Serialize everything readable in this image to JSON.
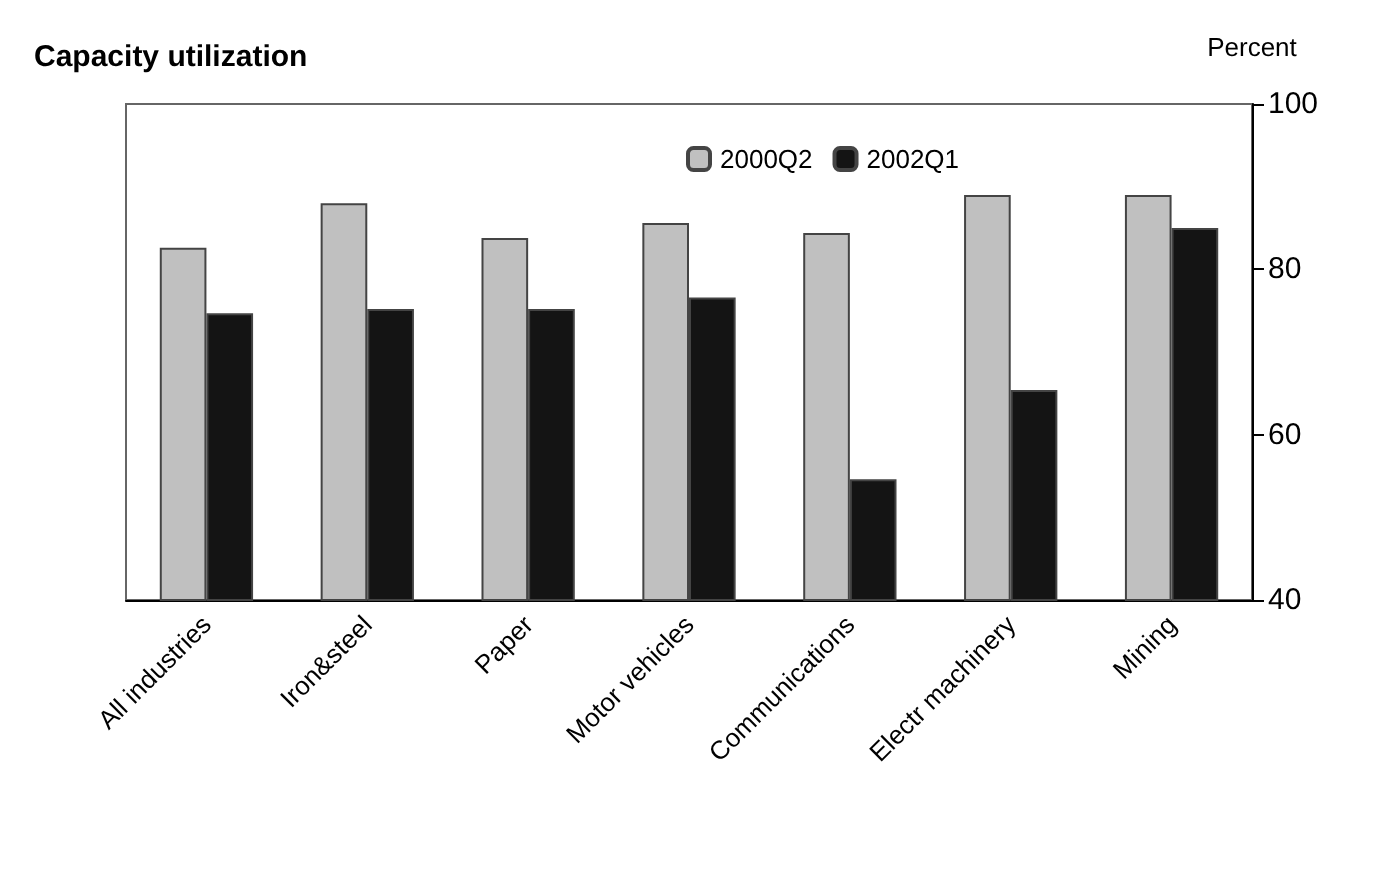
{
  "chart_data": {
    "type": "bar",
    "title": "Capacity utilization",
    "ylabel": "Percent",
    "categories": [
      "All industries",
      "Iron&steel",
      "Paper",
      "Motor vehicles",
      "Communications",
      "Electr machinery",
      "Mining"
    ],
    "series": [
      {
        "name": "2000Q2",
        "color": "#c0c0c0",
        "values": [
          82.6,
          88.0,
          83.8,
          85.6,
          84.4,
          89.0,
          89.0
        ]
      },
      {
        "name": "2002Q1",
        "color": "#141414",
        "values": [
          74.7,
          75.2,
          75.2,
          76.6,
          54.6,
          65.4,
          85.0
        ]
      }
    ],
    "ylim": [
      40,
      100
    ],
    "yticks": [
      40,
      60,
      80,
      100
    ],
    "grid": false,
    "legend": "top"
  }
}
